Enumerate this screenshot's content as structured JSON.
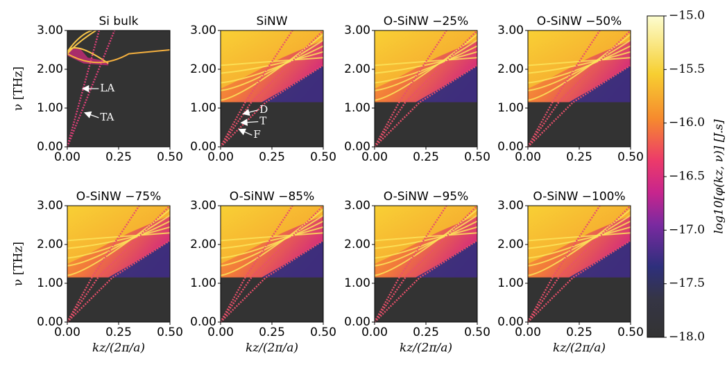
{
  "chart_data": [
    {
      "type": "heatmap",
      "title": "Si bulk",
      "ylabel": "ν [THz]",
      "xlim": [
        0,
        0.5
      ],
      "xticks": [
        {
          "value": 0,
          "label": "0.00"
        },
        {
          "value": 0.25,
          "label": "0.25"
        },
        {
          "value": 0.5,
          "label": "0.50"
        }
      ],
      "ylim": [
        0,
        3
      ],
      "yticks": [
        {
          "value": 0,
          "label": "0.00"
        },
        {
          "value": 1,
          "label": "1.00"
        },
        {
          "value": 2,
          "label": "2.00"
        },
        {
          "value": 3,
          "label": "3.00"
        }
      ],
      "annotations": [
        "LA",
        "TA"
      ]
    },
    {
      "type": "heatmap",
      "title": "SiNW",
      "xlim": [
        0,
        0.5
      ],
      "xticks": [
        {
          "value": 0,
          "label": "0.00"
        },
        {
          "value": 0.25,
          "label": "0.25"
        },
        {
          "value": 0.5,
          "label": "0.50"
        }
      ],
      "ylim": [
        0,
        3
      ],
      "yticks": [
        {
          "value": 0,
          "label": "0.00"
        },
        {
          "value": 1,
          "label": "1.00"
        },
        {
          "value": 2,
          "label": "2.00"
        },
        {
          "value": 3,
          "label": "3.00"
        }
      ],
      "annotations": [
        "D",
        "T",
        "F"
      ]
    },
    {
      "type": "heatmap",
      "title": "O-SiNW −25%",
      "xlim": [
        0,
        0.5
      ],
      "xticks": [
        {
          "value": 0,
          "label": "0.00"
        },
        {
          "value": 0.25,
          "label": "0.25"
        },
        {
          "value": 0.5,
          "label": "0.50"
        }
      ],
      "ylim": [
        0,
        3
      ],
      "yticks": [
        {
          "value": 0,
          "label": "0.00"
        },
        {
          "value": 1,
          "label": "1.00"
        },
        {
          "value": 2,
          "label": "2.00"
        },
        {
          "value": 3,
          "label": "3.00"
        }
      ]
    },
    {
      "type": "heatmap",
      "title": "O-SiNW −50%",
      "xlim": [
        0,
        0.5
      ],
      "xticks": [
        {
          "value": 0,
          "label": "0.00"
        },
        {
          "value": 0.25,
          "label": "0.25"
        },
        {
          "value": 0.5,
          "label": "0.50"
        }
      ],
      "ylim": [
        0,
        3
      ],
      "yticks": [
        {
          "value": 0,
          "label": "0.00"
        },
        {
          "value": 1,
          "label": "1.00"
        },
        {
          "value": 2,
          "label": "2.00"
        },
        {
          "value": 3,
          "label": "3.00"
        }
      ]
    },
    {
      "type": "heatmap",
      "title": "O-SiNW −75%",
      "xlabel": "kz/(2π/a)",
      "ylabel": "ν [THz]",
      "xlim": [
        0,
        0.5
      ],
      "xticks": [
        {
          "value": 0,
          "label": "0.00"
        },
        {
          "value": 0.25,
          "label": "0.25"
        },
        {
          "value": 0.5,
          "label": "0.50"
        }
      ],
      "ylim": [
        0,
        3
      ],
      "yticks": [
        {
          "value": 0,
          "label": "0.00"
        },
        {
          "value": 1,
          "label": "1.00"
        },
        {
          "value": 2,
          "label": "2.00"
        },
        {
          "value": 3,
          "label": "3.00"
        }
      ]
    },
    {
      "type": "heatmap",
      "title": "O-SiNW −85%",
      "xlabel": "kz/(2π/a)",
      "xlim": [
        0,
        0.5
      ],
      "xticks": [
        {
          "value": 0,
          "label": "0.00"
        },
        {
          "value": 0.25,
          "label": "0.25"
        },
        {
          "value": 0.5,
          "label": "0.50"
        }
      ],
      "ylim": [
        0,
        3
      ],
      "yticks": [
        {
          "value": 0,
          "label": "0.00"
        },
        {
          "value": 1,
          "label": "1.00"
        },
        {
          "value": 2,
          "label": "2.00"
        },
        {
          "value": 3,
          "label": "3.00"
        }
      ]
    },
    {
      "type": "heatmap",
      "title": "O-SiNW −95%",
      "xlabel": "kz/(2π/a)",
      "xlim": [
        0,
        0.5
      ],
      "xticks": [
        {
          "value": 0,
          "label": "0.00"
        },
        {
          "value": 0.25,
          "label": "0.25"
        },
        {
          "value": 0.5,
          "label": "0.50"
        }
      ],
      "ylim": [
        0,
        3
      ],
      "yticks": [
        {
          "value": 0,
          "label": "0.00"
        },
        {
          "value": 1,
          "label": "1.00"
        },
        {
          "value": 2,
          "label": "2.00"
        },
        {
          "value": 3,
          "label": "3.00"
        }
      ]
    },
    {
      "type": "heatmap",
      "title": "O-SiNW −100%",
      "xlabel": "kz/(2π/a)",
      "xlim": [
        0,
        0.5
      ],
      "xticks": [
        {
          "value": 0,
          "label": "0.00"
        },
        {
          "value": 0.25,
          "label": "0.25"
        },
        {
          "value": 0.5,
          "label": "0.50"
        }
      ],
      "ylim": [
        0,
        3
      ],
      "yticks": [
        {
          "value": 0,
          "label": "0.00"
        },
        {
          "value": 1,
          "label": "1.00"
        },
        {
          "value": 2,
          "label": "2.00"
        },
        {
          "value": 3,
          "label": "3.00"
        }
      ]
    },
    {
      "type": "colorbar",
      "label": "log10[φ(kz, ν)] [J.s]",
      "lim": [
        -18,
        -15
      ],
      "ticks": [
        {
          "value": -18,
          "label": "−18.0"
        },
        {
          "value": -17.5,
          "label": "−17.5"
        },
        {
          "value": -17,
          "label": "−17.0"
        },
        {
          "value": -16.5,
          "label": "−16.5"
        },
        {
          "value": -16,
          "label": "−16.0"
        },
        {
          "value": -15.5,
          "label": "−15.5"
        },
        {
          "value": -15,
          "label": "−15.0"
        }
      ]
    }
  ]
}
